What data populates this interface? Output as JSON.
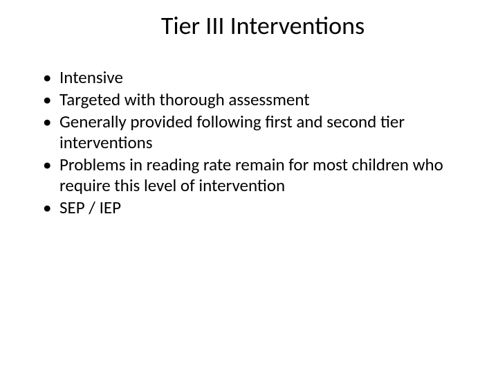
{
  "slide": {
    "title": "Tier III Interventions",
    "bullets": [
      "Intensive",
      "Targeted with thorough assessment",
      "Generally provided following first and second tier interventions",
      "Problems in reading rate remain for most children who require this level of intervention",
      "SEP / IEP"
    ],
    "background_color": "#ffffff",
    "text_color": "#000000",
    "title_fontsize": 36,
    "bullet_fontsize": 25
  }
}
